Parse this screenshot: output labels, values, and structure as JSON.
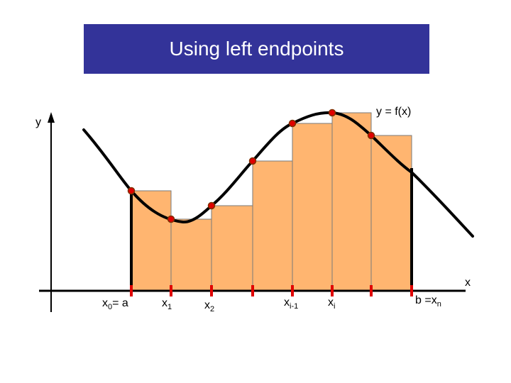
{
  "title": "Using left endpoints",
  "labels": {
    "y_axis": "y",
    "x_axis": "x",
    "curve": "y = f(x)"
  },
  "ticks": [
    {
      "main": "x",
      "sub": "0",
      "suffix": "= a"
    },
    {
      "main": "x",
      "sub": "1",
      "suffix": ""
    },
    {
      "main": "x",
      "sub": "2",
      "suffix": ""
    },
    {
      "main": "x",
      "sub": "i-1",
      "suffix": ""
    },
    {
      "main": "x",
      "sub": "i",
      "suffix": ""
    },
    {
      "main": "b =x",
      "sub": "n",
      "suffix": ""
    }
  ],
  "colors": {
    "title_bg": "#333399",
    "rect_fill": "#FFB570",
    "accent": "#E00000",
    "curve": "#000000"
  }
}
